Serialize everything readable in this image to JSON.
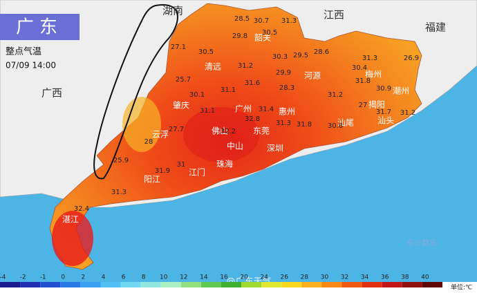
{
  "header": {
    "title": "广东",
    "subtitle": "整点气温",
    "time": "07/09 14:00"
  },
  "regions": [
    "湖南",
    "江西",
    "福建",
    "广西",
    "东沙群岛"
  ],
  "cities": [
    "韶关",
    "清远",
    "河源",
    "梅州",
    "潮州",
    "揭阳",
    "汕头",
    "汕尾",
    "惠州",
    "广州",
    "肇庆",
    "佛山",
    "东莞",
    "深圳",
    "中山",
    "珠海",
    "江门",
    "阳江",
    "云浮",
    "湛江"
  ],
  "temperatures": [
    28.5,
    30.7,
    31.3,
    30.5,
    29.8,
    27.1,
    30.5,
    30.3,
    29.5,
    28.6,
    31.3,
    26.9,
    30.4,
    31.2,
    29.9,
    31.8,
    25.7,
    31.6,
    28.3,
    30.1,
    31.1,
    31.2,
    30.9,
    31.1,
    27,
    31.4,
    31.7,
    31.2,
    30.8,
    31.3,
    31.8,
    32.8,
    27.7,
    28,
    32.2,
    25.9,
    31,
    31.9,
    31.3,
    32.4
  ],
  "legend": {
    "ticks": [
      -4,
      -2,
      -1,
      0,
      2,
      4,
      6,
      8,
      10,
      12,
      14,
      16,
      20,
      24,
      26,
      28,
      30,
      32,
      34,
      36,
      38,
      40
    ],
    "colors": [
      "#1a1a8c",
      "#2030b0",
      "#2050d0",
      "#2a78e6",
      "#3aa0f0",
      "#50c0f5",
      "#70d8f0",
      "#90e8e0",
      "#a8f0c0",
      "#90e080",
      "#60c850",
      "#40b030",
      "#a0d830",
      "#e0e830",
      "#f8d820",
      "#f8b020",
      "#f88818",
      "#f05a10",
      "#e03010",
      "#c01818",
      "#901010",
      "#600808"
    ],
    "unit": "单位:℃",
    "watermark": "@广东天气"
  }
}
